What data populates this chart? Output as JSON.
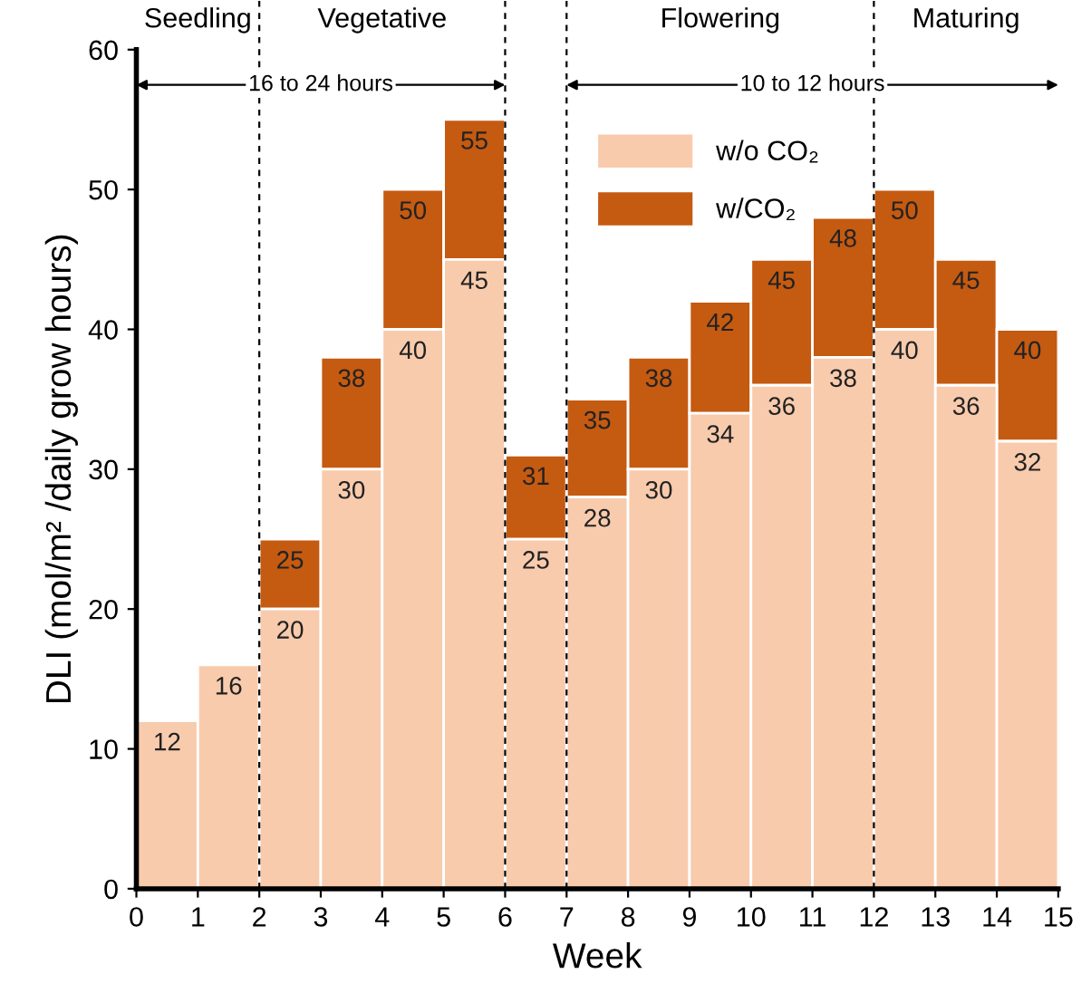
{
  "chart_data": {
    "type": "bar",
    "stacked": true,
    "xlabel": "Week",
    "ylabel": "DLI (mol/m² /daily grow hours)",
    "x": [
      0.5,
      1.5,
      2.5,
      3.5,
      4.5,
      5.5,
      6.5,
      7.5,
      8.5,
      9.5,
      10.5,
      11.5,
      12.5,
      13.5,
      14.5
    ],
    "series": [
      {
        "name": "w/o CO₂",
        "color": "#f8cbad",
        "values": [
          12,
          16,
          20,
          30,
          40,
          45,
          25,
          28,
          30,
          34,
          36,
          38,
          40,
          36,
          32
        ],
        "value_labels": [
          "12",
          "16",
          "20",
          "30",
          "40",
          "45",
          "25",
          "28",
          "30",
          "34",
          "36",
          "38",
          "40",
          "36",
          "32"
        ]
      },
      {
        "name": "w/CO₂",
        "color": "#c55a11",
        "values": [
          null,
          null,
          5,
          8,
          10,
          10,
          6,
          7,
          8,
          8,
          9,
          10,
          10,
          9,
          8
        ]
      }
    ],
    "totals": [
      null,
      null,
      "25",
      "38",
      "50",
      "55",
      "31",
      "35",
      "38",
      "42",
      "45",
      "48",
      "50",
      "45",
      "40"
    ],
    "xlim": [
      0,
      15
    ],
    "xticks": [
      0,
      1,
      2,
      3,
      4,
      5,
      6,
      7,
      8,
      9,
      10,
      11,
      12,
      13,
      14,
      15
    ],
    "ylim": [
      0,
      60
    ],
    "yticks": [
      0,
      10,
      20,
      30,
      40,
      50,
      60
    ],
    "ref_lines": [
      {
        "axis": "x",
        "value": 2,
        "line_style": "dashed",
        "color": "#000000"
      },
      {
        "axis": "x",
        "value": 6,
        "line_style": "dashed",
        "color": "#000000"
      },
      {
        "axis": "x",
        "value": 7,
        "line_style": "dashed",
        "color": "#000000"
      },
      {
        "axis": "x",
        "value": 12,
        "line_style": "dashed",
        "color": "#000000"
      }
    ],
    "annotations": [
      "Seedling",
      "Vegetative",
      "Flowering",
      "Maturing",
      "16 to 24 hours",
      "10 to 12 hours"
    ],
    "legend": "top",
    "grid": false
  }
}
